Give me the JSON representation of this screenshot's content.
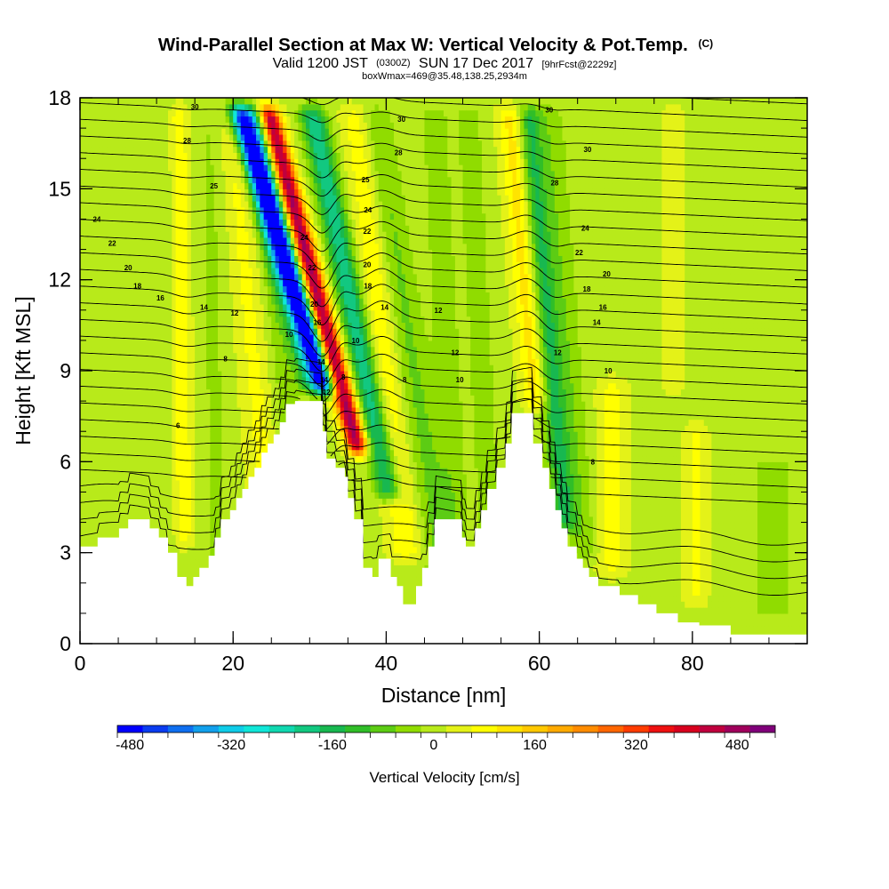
{
  "chart_data": {
    "type": "heatmap",
    "title": "Wind-Parallel Section at Max W: Vertical Velocity & Pot.Temp.",
    "title_mark": "(C)",
    "subtitle_main": "Valid 1200 JST",
    "subtitle_utc": "(0300Z)",
    "subtitle_date": "SUN 17 Dec 2017",
    "subtitle_fcst": "[9hrFcst@2229z]",
    "box_info": "boxWmax=469@35.48,138.25,2934m",
    "xlabel": "Distance [nm]",
    "ylabel": "Height [Kft MSL]",
    "xlim": [
      0,
      95
    ],
    "ylim": [
      0,
      18
    ],
    "x_ticks": [
      "0",
      "20",
      "40",
      "60",
      "80"
    ],
    "y_ticks": [
      "0",
      "3",
      "6",
      "9",
      "12",
      "15",
      "18"
    ],
    "colorbar": {
      "label": "Vertical Velocity [cm/s]",
      "tick_labels": [
        "-480",
        "-320",
        "-160",
        "0",
        "160",
        "320",
        "480"
      ],
      "levels": [
        -500,
        -460,
        -420,
        -380,
        -340,
        -300,
        -260,
        -220,
        -180,
        -140,
        -100,
        -60,
        -20,
        20,
        60,
        100,
        140,
        180,
        220,
        260,
        300,
        340,
        380,
        420,
        460,
        500,
        540
      ],
      "colors": [
        "#0000ff",
        "#0a3cf0",
        "#0f6ff0",
        "#12a0ec",
        "#0fcce8",
        "#10e6d8",
        "#10d8b0",
        "#12c880",
        "#18b850",
        "#30be28",
        "#5ccc14",
        "#90dc00",
        "#b8ea1a",
        "#e4f218",
        "#ffff00",
        "#ffe400",
        "#ffc800",
        "#ffaa00",
        "#ff8c00",
        "#ff6600",
        "#ff3c00",
        "#ee1010",
        "#d8001e",
        "#c0003e",
        "#a0005c",
        "#80007a"
      ]
    },
    "w_field": {
      "background": 10,
      "features": [
        {
          "x": 31.2,
          "slope": -1.2,
          "width": 1.5,
          "amp": -470,
          "zmin": 8.0,
          "zmax": 18
        },
        {
          "x": 29.8,
          "slope": -0.9,
          "width": 1.8,
          "amp": -150,
          "zmin": 8.0,
          "zmax": 18
        },
        {
          "x": 33.6,
          "slope": -1.05,
          "width": 1.35,
          "amp": 470,
          "zmin": 6.0,
          "zmax": 18
        },
        {
          "x": 37.2,
          "slope": -0.8,
          "width": 1.7,
          "amp": -220,
          "zmin": 4.5,
          "zmax": 18
        },
        {
          "x": 40.0,
          "slope": -0.45,
          "width": 2.0,
          "amp": 85,
          "zmin": 2.5,
          "zmax": 18
        },
        {
          "x": 43.5,
          "slope": -0.6,
          "width": 2.2,
          "amp": -80,
          "zmin": 1.5,
          "zmax": 18
        },
        {
          "x": 59.2,
          "slope": -0.35,
          "width": 1.6,
          "amp": 110,
          "zmin": 7.5,
          "zmax": 18
        },
        {
          "x": 61.6,
          "slope": -0.35,
          "width": 1.5,
          "amp": -160,
          "zmin": 3.5,
          "zmax": 18
        },
        {
          "x": 64.0,
          "slope": -0.3,
          "width": 1.8,
          "amp": -60,
          "zmin": 2.5,
          "zmax": 18
        },
        {
          "x": 13.3,
          "slope": -0.05,
          "width": 1.2,
          "amp": 85,
          "zmin": 3.0,
          "zmax": 18
        },
        {
          "x": 10.5,
          "slope": 0.0,
          "width": 2.0,
          "amp": -30,
          "zmin": 3.0,
          "zmax": 18
        },
        {
          "x": 17.5,
          "slope": -0.05,
          "width": 2.0,
          "amp": -35,
          "zmin": 2.0,
          "zmax": 18
        },
        {
          "x": 22.8,
          "slope": -0.35,
          "width": 2.0,
          "amp": 60,
          "zmin": 4.0,
          "zmax": 18
        },
        {
          "x": 26.5,
          "slope": -0.4,
          "width": 1.8,
          "amp": -50,
          "zmin": 5.0,
          "zmax": 18
        },
        {
          "x": 48.0,
          "slope": -0.2,
          "width": 1.8,
          "amp": -55,
          "zmin": 3.0,
          "zmax": 18
        },
        {
          "x": 52.5,
          "slope": -0.2,
          "width": 1.8,
          "amp": -50,
          "zmin": 3.0,
          "zmax": 18
        },
        {
          "x": 69.5,
          "slope": 0.0,
          "width": 1.8,
          "amp": 70,
          "zmin": 2.0,
          "zmax": 9
        },
        {
          "x": 80.5,
          "slope": 0.0,
          "width": 1.4,
          "amp": 60,
          "zmin": 1.0,
          "zmax": 7.5
        },
        {
          "x": 90.5,
          "slope": 0.0,
          "width": 4.5,
          "amp": -35,
          "zmin": 0.5,
          "zmax": 6.5
        },
        {
          "x": 77.5,
          "slope": 0.0,
          "width": 1.5,
          "amp": 35,
          "zmin": 8.0,
          "zmax": 18
        }
      ]
    },
    "theta_labels": [
      {
        "x": 12.8,
        "z": 7.2,
        "text": "6"
      },
      {
        "x": 19.0,
        "z": 9.4,
        "text": "8"
      },
      {
        "x": 27.3,
        "z": 10.2,
        "text": "10"
      },
      {
        "x": 20.2,
        "z": 10.9,
        "text": "12"
      },
      {
        "x": 16.2,
        "z": 11.1,
        "text": "14"
      },
      {
        "x": 10.5,
        "z": 11.4,
        "text": "16"
      },
      {
        "x": 7.5,
        "z": 11.8,
        "text": "18"
      },
      {
        "x": 6.3,
        "z": 12.4,
        "text": "20"
      },
      {
        "x": 4.2,
        "z": 13.2,
        "text": "22"
      },
      {
        "x": 2.2,
        "z": 14.0,
        "text": "24"
      },
      {
        "x": 17.5,
        "z": 15.1,
        "text": "25"
      },
      {
        "x": 14.0,
        "z": 16.6,
        "text": "28"
      },
      {
        "x": 15.0,
        "z": 17.7,
        "text": "30"
      },
      {
        "x": 29.3,
        "z": 13.4,
        "text": "24"
      },
      {
        "x": 30.3,
        "z": 12.4,
        "text": "22"
      },
      {
        "x": 30.6,
        "z": 11.2,
        "text": "20"
      },
      {
        "x": 31.0,
        "z": 10.6,
        "text": "16"
      },
      {
        "x": 31.5,
        "z": 9.3,
        "text": "14"
      },
      {
        "x": 31.9,
        "z": 8.7,
        "text": "14"
      },
      {
        "x": 32.2,
        "z": 8.3,
        "text": "12"
      },
      {
        "x": 34.4,
        "z": 8.8,
        "text": "8"
      },
      {
        "x": 36.0,
        "z": 10.0,
        "text": "10"
      },
      {
        "x": 37.6,
        "z": 11.8,
        "text": "18"
      },
      {
        "x": 37.5,
        "z": 12.5,
        "text": "20"
      },
      {
        "x": 37.5,
        "z": 13.6,
        "text": "22"
      },
      {
        "x": 37.6,
        "z": 14.3,
        "text": "24"
      },
      {
        "x": 37.3,
        "z": 15.3,
        "text": "25"
      },
      {
        "x": 41.6,
        "z": 16.2,
        "text": "28"
      },
      {
        "x": 42.0,
        "z": 17.3,
        "text": "30"
      },
      {
        "x": 39.8,
        "z": 11.1,
        "text": "14"
      },
      {
        "x": 42.4,
        "z": 8.7,
        "text": "8"
      },
      {
        "x": 46.8,
        "z": 11.0,
        "text": "12"
      },
      {
        "x": 49.0,
        "z": 9.6,
        "text": "12"
      },
      {
        "x": 49.6,
        "z": 8.7,
        "text": "10"
      },
      {
        "x": 61.3,
        "z": 17.6,
        "text": "30"
      },
      {
        "x": 62.0,
        "z": 15.2,
        "text": "28"
      },
      {
        "x": 66.3,
        "z": 16.3,
        "text": "30"
      },
      {
        "x": 66.0,
        "z": 13.7,
        "text": "24"
      },
      {
        "x": 65.2,
        "z": 12.9,
        "text": "22"
      },
      {
        "x": 68.8,
        "z": 12.2,
        "text": "20"
      },
      {
        "x": 66.2,
        "z": 11.7,
        "text": "18"
      },
      {
        "x": 68.3,
        "z": 11.1,
        "text": "16"
      },
      {
        "x": 67.5,
        "z": 10.6,
        "text": "14"
      },
      {
        "x": 62.4,
        "z": 9.6,
        "text": "12"
      },
      {
        "x": 69.0,
        "z": 9.0,
        "text": "10"
      },
      {
        "x": 67.0,
        "z": 6.0,
        "text": "8"
      }
    ],
    "terrain": [
      [
        0.0,
        3.2
      ],
      [
        2.3,
        3.2
      ],
      [
        2.3,
        3.5
      ],
      [
        5.1,
        3.5
      ],
      [
        5.1,
        3.8
      ],
      [
        6.3,
        3.8
      ],
      [
        6.3,
        4.1
      ],
      [
        9.1,
        4.1
      ],
      [
        9.1,
        3.8
      ],
      [
        10.3,
        3.8
      ],
      [
        10.3,
        3.5
      ],
      [
        11.5,
        3.5
      ],
      [
        11.5,
        3.0
      ],
      [
        12.7,
        3.0
      ],
      [
        12.7,
        2.2
      ],
      [
        13.9,
        2.2
      ],
      [
        13.9,
        1.9
      ],
      [
        14.8,
        1.9
      ],
      [
        14.8,
        2.2
      ],
      [
        15.6,
        2.2
      ],
      [
        15.6,
        2.5
      ],
      [
        16.8,
        2.5
      ],
      [
        16.8,
        2.9
      ],
      [
        17.6,
        2.9
      ],
      [
        17.6,
        3.5
      ],
      [
        18.4,
        3.5
      ],
      [
        18.4,
        4.1
      ],
      [
        19.6,
        4.1
      ],
      [
        19.6,
        4.4
      ],
      [
        20.4,
        4.4
      ],
      [
        20.4,
        4.8
      ],
      [
        21.2,
        4.8
      ],
      [
        21.2,
        5.1
      ],
      [
        22.0,
        5.1
      ],
      [
        22.0,
        5.5
      ],
      [
        22.8,
        5.5
      ],
      [
        22.8,
        5.8
      ],
      [
        23.7,
        5.8
      ],
      [
        23.7,
        6.3
      ],
      [
        24.5,
        6.3
      ],
      [
        24.5,
        6.6
      ],
      [
        25.3,
        6.6
      ],
      [
        25.3,
        6.9
      ],
      [
        26.1,
        6.9
      ],
      [
        26.1,
        7.3
      ],
      [
        26.9,
        7.3
      ],
      [
        26.9,
        7.9
      ],
      [
        28.1,
        7.9
      ],
      [
        28.1,
        8.0
      ],
      [
        31.7,
        8.0
      ],
      [
        31.7,
        7.0
      ],
      [
        32.2,
        7.0
      ],
      [
        32.2,
        6.1
      ],
      [
        33.4,
        6.1
      ],
      [
        33.4,
        5.8
      ],
      [
        34.6,
        5.8
      ],
      [
        34.6,
        5.5
      ],
      [
        35.0,
        5.5
      ],
      [
        35.0,
        4.8
      ],
      [
        35.8,
        4.8
      ],
      [
        35.8,
        4.1
      ],
      [
        37.0,
        4.1
      ],
      [
        37.0,
        2.5
      ],
      [
        38.2,
        2.5
      ],
      [
        38.2,
        2.2
      ],
      [
        39.0,
        2.2
      ],
      [
        39.0,
        2.8
      ],
      [
        40.6,
        2.8
      ],
      [
        40.6,
        2.2
      ],
      [
        41.4,
        2.2
      ],
      [
        41.4,
        1.9
      ],
      [
        42.2,
        1.9
      ],
      [
        42.2,
        1.3
      ],
      [
        43.9,
        1.3
      ],
      [
        43.9,
        1.9
      ],
      [
        44.7,
        1.9
      ],
      [
        44.7,
        2.5
      ],
      [
        45.5,
        2.5
      ],
      [
        45.5,
        3.2
      ],
      [
        46.3,
        3.2
      ],
      [
        46.3,
        4.1
      ],
      [
        49.9,
        4.1
      ],
      [
        49.9,
        3.5
      ],
      [
        50.4,
        3.5
      ],
      [
        50.4,
        3.2
      ],
      [
        51.6,
        3.2
      ],
      [
        51.6,
        3.8
      ],
      [
        52.4,
        3.8
      ],
      [
        52.4,
        4.4
      ],
      [
        53.2,
        4.4
      ],
      [
        53.2,
        5.1
      ],
      [
        54.4,
        5.1
      ],
      [
        54.4,
        5.8
      ],
      [
        55.6,
        5.8
      ],
      [
        55.6,
        6.6
      ],
      [
        56.4,
        6.6
      ],
      [
        56.4,
        7.6
      ],
      [
        59.2,
        7.6
      ],
      [
        59.2,
        6.6
      ],
      [
        60.4,
        6.6
      ],
      [
        60.4,
        5.8
      ],
      [
        61.3,
        5.8
      ],
      [
        61.3,
        5.1
      ],
      [
        62.1,
        5.1
      ],
      [
        62.1,
        4.4
      ],
      [
        62.9,
        4.4
      ],
      [
        62.9,
        3.8
      ],
      [
        63.7,
        3.8
      ],
      [
        63.7,
        3.2
      ],
      [
        64.9,
        3.2
      ],
      [
        64.9,
        2.8
      ],
      [
        65.7,
        2.8
      ],
      [
        65.7,
        2.5
      ],
      [
        66.5,
        2.5
      ],
      [
        66.5,
        2.2
      ],
      [
        67.7,
        2.2
      ],
      [
        67.7,
        1.9
      ],
      [
        70.5,
        1.9
      ],
      [
        70.5,
        1.6
      ],
      [
        72.9,
        1.6
      ],
      [
        72.9,
        1.3
      ],
      [
        75.3,
        1.3
      ],
      [
        75.3,
        1.0
      ],
      [
        78.1,
        1.0
      ],
      [
        78.1,
        0.7
      ],
      [
        80.9,
        0.7
      ],
      [
        80.9,
        0.6
      ],
      [
        85.0,
        0.6
      ],
      [
        85.0,
        0.3
      ],
      [
        95.0,
        0.3
      ]
    ]
  }
}
